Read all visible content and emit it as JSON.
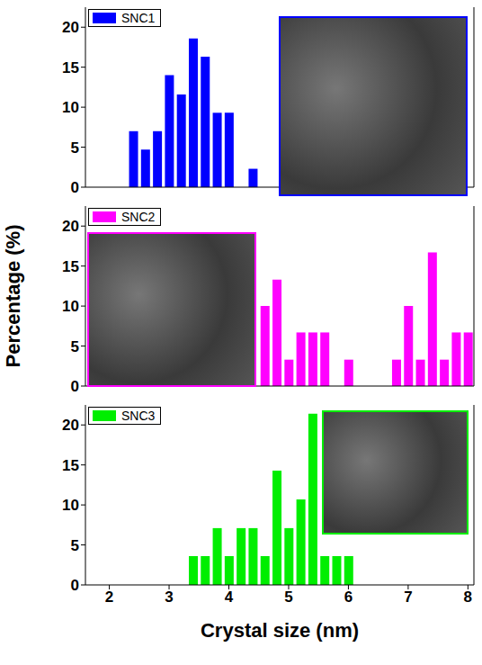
{
  "chart_data": [
    {
      "type": "bar",
      "x": [
        2.4,
        2.6,
        2.8,
        3.0,
        3.2,
        3.4,
        3.6,
        3.8,
        4.0,
        4.4
      ],
      "series": [
        {
          "name": "SNC1",
          "color": "#0000ff",
          "values": [
            7.0,
            4.7,
            7.0,
            14.0,
            11.6,
            18.6,
            16.3,
            9.3,
            9.3,
            2.3
          ]
        }
      ],
      "xlim": [
        1.6,
        8.1
      ],
      "xticks": [
        2,
        3,
        4,
        5,
        6,
        7,
        8
      ],
      "ylim": [
        0,
        22.5
      ],
      "yticks": [
        0,
        5,
        10,
        15,
        20
      ],
      "legend": "upper left",
      "tick_labels": "y"
    },
    {
      "type": "bar",
      "x": [
        4.6,
        4.8,
        5.0,
        5.2,
        5.4,
        5.6,
        6.0,
        6.8,
        7.0,
        7.2,
        7.4,
        7.6,
        7.8,
        8.0
      ],
      "series": [
        {
          "name": "SNC2",
          "color": "#ff00ff",
          "values": [
            10.0,
            13.3,
            3.3,
            6.7,
            6.7,
            6.7,
            3.3,
            3.3,
            10.0,
            3.3,
            16.7,
            3.3,
            6.7,
            6.7
          ]
        }
      ],
      "ylabel": "Percentage (%)",
      "xlim": [
        1.6,
        8.1
      ],
      "xticks": [
        2,
        3,
        4,
        5,
        6,
        7,
        8
      ],
      "ylim": [
        0,
        22.5
      ],
      "yticks": [
        0,
        5,
        10,
        15,
        20
      ],
      "legend": "upper left",
      "tick_labels": "y"
    },
    {
      "type": "bar",
      "x": [
        3.4,
        3.6,
        3.8,
        4.0,
        4.2,
        4.4,
        4.6,
        4.8,
        5.0,
        5.2,
        5.4,
        5.6,
        5.8,
        6.0
      ],
      "series": [
        {
          "name": "SNC3",
          "color": "#00ee00",
          "values": [
            3.6,
            3.6,
            7.1,
            3.6,
            7.1,
            7.1,
            3.6,
            14.3,
            7.1,
            10.7,
            21.4,
            3.6,
            3.6,
            3.6
          ]
        }
      ],
      "xlabel": "Crystal size (nm)",
      "xlim": [
        1.6,
        8.1
      ],
      "xticks": [
        2,
        3,
        4,
        5,
        6,
        7,
        8
      ],
      "ylim": [
        0,
        22.5
      ],
      "yticks": [
        0,
        5,
        10,
        15,
        20
      ],
      "legend": "upper left"
    }
  ]
}
